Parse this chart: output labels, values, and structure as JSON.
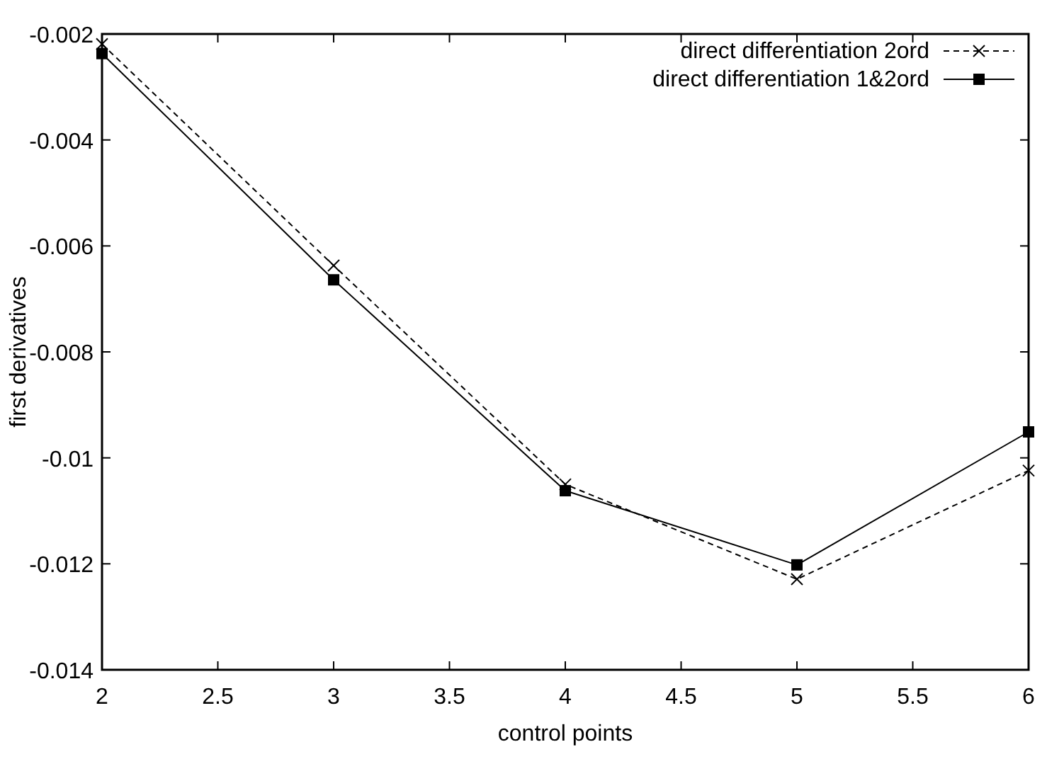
{
  "chart_data": {
    "type": "line",
    "xlabel": "control points",
    "ylabel": "first derivatives",
    "x": [
      2,
      3,
      4,
      5,
      6
    ],
    "series": [
      {
        "name": "direct differentiation 2ord",
        "color": "#000000",
        "values": [
          -0.00219,
          -0.00637,
          -0.0105,
          -0.01229,
          -0.01024
        ],
        "marker": "cross",
        "line_style": "dashed"
      },
      {
        "name": "direct differentiation 1&2ord",
        "color": "#000000",
        "values": [
          -0.00237,
          -0.00664,
          -0.01062,
          -0.01202,
          -0.00951
        ],
        "marker": "square",
        "line_style": "solid"
      }
    ],
    "xlim": [
      2,
      6
    ],
    "xticks": [
      2,
      2.5,
      3,
      3.5,
      4,
      4.5,
      5,
      5.5,
      6
    ],
    "ylim": [
      -0.014,
      -0.002
    ],
    "yticks": [
      -0.014,
      -0.012,
      -0.01,
      -0.008,
      -0.006,
      -0.004,
      -0.002
    ],
    "grid": false,
    "legend": "top right"
  }
}
